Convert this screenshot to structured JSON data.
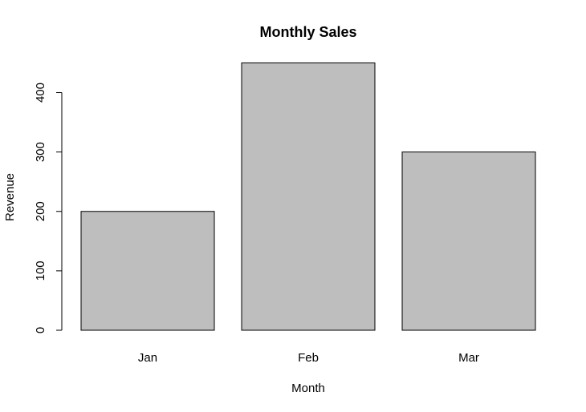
{
  "chart_data": {
    "type": "bar",
    "title": "Monthly Sales",
    "xlabel": "Month",
    "ylabel": "Revenue",
    "categories": [
      "Jan",
      "Feb",
      "Mar"
    ],
    "values": [
      200,
      450,
      300
    ],
    "ylim": [
      0,
      450
    ],
    "yticks": [
      0,
      100,
      200,
      300,
      400
    ],
    "grid": false,
    "legend": "none",
    "bar_color": "#bebebe",
    "edge_color": "#000000"
  }
}
